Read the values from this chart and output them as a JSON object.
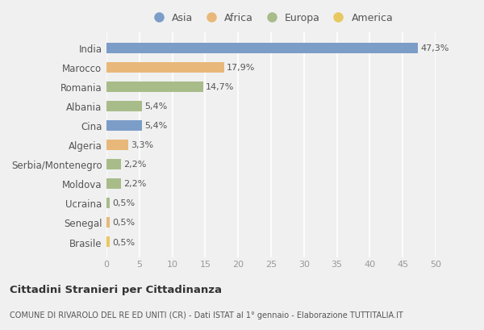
{
  "categories": [
    "India",
    "Marocco",
    "Romania",
    "Albania",
    "Cina",
    "Algeria",
    "Serbia/Montenegro",
    "Moldova",
    "Ucraina",
    "Senegal",
    "Brasile"
  ],
  "values": [
    47.3,
    17.9,
    14.7,
    5.4,
    5.4,
    3.3,
    2.2,
    2.2,
    0.5,
    0.5,
    0.5
  ],
  "labels": [
    "47,3%",
    "17,9%",
    "14,7%",
    "5,4%",
    "5,4%",
    "3,3%",
    "2,2%",
    "2,2%",
    "0,5%",
    "0,5%",
    "0,5%"
  ],
  "colors": [
    "#7b9dc8",
    "#e8b87a",
    "#a8bc8a",
    "#a8bc8a",
    "#7b9dc8",
    "#e8b87a",
    "#a8bc8a",
    "#a8bc8a",
    "#a8bc8a",
    "#e8b87a",
    "#e8c860"
  ],
  "legend_labels": [
    "Asia",
    "Africa",
    "Europa",
    "America"
  ],
  "legend_colors": [
    "#7b9dc8",
    "#e8b87a",
    "#a8bc8a",
    "#e8c860"
  ],
  "title_bold": "Cittadini Stranieri per Cittadinanza",
  "title_sub": "COMUNE DI RIVAROLO DEL RE ED UNITI (CR) - Dati ISTAT al 1° gennaio - Elaborazione TUTTITALIA.IT",
  "xlim": [
    0,
    50
  ],
  "xticks": [
    0,
    5,
    10,
    15,
    20,
    25,
    30,
    35,
    40,
    45,
    50
  ],
  "background_color": "#f0f0f0",
  "grid_color": "#ffffff",
  "bar_height": 0.55
}
